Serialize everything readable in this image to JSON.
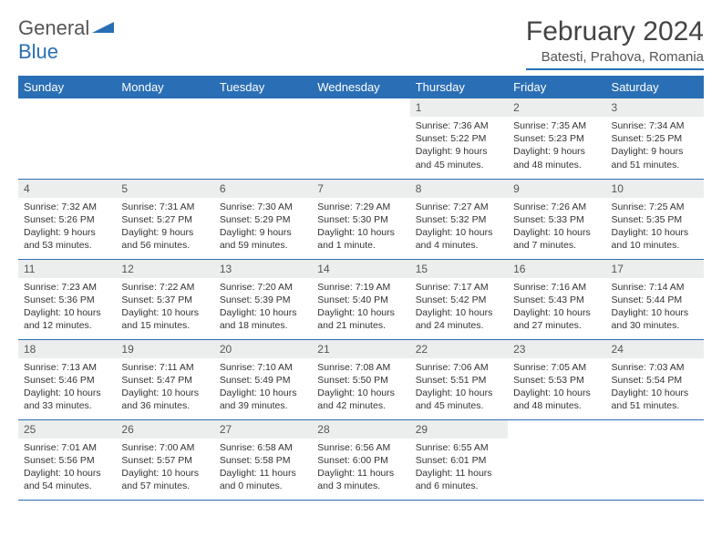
{
  "logo": {
    "text1": "General",
    "text2": "Blue",
    "shape_color": "#2a6fb5"
  },
  "title": "February 2024",
  "location": "Batesti, Prahova, Romania",
  "colors": {
    "accent": "#2a6fb5",
    "header_bg": "#2a6fb5",
    "daynum_bg": "#eceded",
    "text": "#333333",
    "bg": "#ffffff"
  },
  "typography": {
    "title_size": 30,
    "th_size": 13,
    "daynum_size": 12,
    "content_size": 10.5
  },
  "day_headers": [
    "Sunday",
    "Monday",
    "Tuesday",
    "Wednesday",
    "Thursday",
    "Friday",
    "Saturday"
  ],
  "weeks": [
    [
      null,
      null,
      null,
      null,
      {
        "n": "1",
        "sunrise": "7:36 AM",
        "sunset": "5:22 PM",
        "daylight": "9 hours and 45 minutes."
      },
      {
        "n": "2",
        "sunrise": "7:35 AM",
        "sunset": "5:23 PM",
        "daylight": "9 hours and 48 minutes."
      },
      {
        "n": "3",
        "sunrise": "7:34 AM",
        "sunset": "5:25 PM",
        "daylight": "9 hours and 51 minutes."
      }
    ],
    [
      {
        "n": "4",
        "sunrise": "7:32 AM",
        "sunset": "5:26 PM",
        "daylight": "9 hours and 53 minutes."
      },
      {
        "n": "5",
        "sunrise": "7:31 AM",
        "sunset": "5:27 PM",
        "daylight": "9 hours and 56 minutes."
      },
      {
        "n": "6",
        "sunrise": "7:30 AM",
        "sunset": "5:29 PM",
        "daylight": "9 hours and 59 minutes."
      },
      {
        "n": "7",
        "sunrise": "7:29 AM",
        "sunset": "5:30 PM",
        "daylight": "10 hours and 1 minute."
      },
      {
        "n": "8",
        "sunrise": "7:27 AM",
        "sunset": "5:32 PM",
        "daylight": "10 hours and 4 minutes."
      },
      {
        "n": "9",
        "sunrise": "7:26 AM",
        "sunset": "5:33 PM",
        "daylight": "10 hours and 7 minutes."
      },
      {
        "n": "10",
        "sunrise": "7:25 AM",
        "sunset": "5:35 PM",
        "daylight": "10 hours and 10 minutes."
      }
    ],
    [
      {
        "n": "11",
        "sunrise": "7:23 AM",
        "sunset": "5:36 PM",
        "daylight": "10 hours and 12 minutes."
      },
      {
        "n": "12",
        "sunrise": "7:22 AM",
        "sunset": "5:37 PM",
        "daylight": "10 hours and 15 minutes."
      },
      {
        "n": "13",
        "sunrise": "7:20 AM",
        "sunset": "5:39 PM",
        "daylight": "10 hours and 18 minutes."
      },
      {
        "n": "14",
        "sunrise": "7:19 AM",
        "sunset": "5:40 PM",
        "daylight": "10 hours and 21 minutes."
      },
      {
        "n": "15",
        "sunrise": "7:17 AM",
        "sunset": "5:42 PM",
        "daylight": "10 hours and 24 minutes."
      },
      {
        "n": "16",
        "sunrise": "7:16 AM",
        "sunset": "5:43 PM",
        "daylight": "10 hours and 27 minutes."
      },
      {
        "n": "17",
        "sunrise": "7:14 AM",
        "sunset": "5:44 PM",
        "daylight": "10 hours and 30 minutes."
      }
    ],
    [
      {
        "n": "18",
        "sunrise": "7:13 AM",
        "sunset": "5:46 PM",
        "daylight": "10 hours and 33 minutes."
      },
      {
        "n": "19",
        "sunrise": "7:11 AM",
        "sunset": "5:47 PM",
        "daylight": "10 hours and 36 minutes."
      },
      {
        "n": "20",
        "sunrise": "7:10 AM",
        "sunset": "5:49 PM",
        "daylight": "10 hours and 39 minutes."
      },
      {
        "n": "21",
        "sunrise": "7:08 AM",
        "sunset": "5:50 PM",
        "daylight": "10 hours and 42 minutes."
      },
      {
        "n": "22",
        "sunrise": "7:06 AM",
        "sunset": "5:51 PM",
        "daylight": "10 hours and 45 minutes."
      },
      {
        "n": "23",
        "sunrise": "7:05 AM",
        "sunset": "5:53 PM",
        "daylight": "10 hours and 48 minutes."
      },
      {
        "n": "24",
        "sunrise": "7:03 AM",
        "sunset": "5:54 PM",
        "daylight": "10 hours and 51 minutes."
      }
    ],
    [
      {
        "n": "25",
        "sunrise": "7:01 AM",
        "sunset": "5:56 PM",
        "daylight": "10 hours and 54 minutes."
      },
      {
        "n": "26",
        "sunrise": "7:00 AM",
        "sunset": "5:57 PM",
        "daylight": "10 hours and 57 minutes."
      },
      {
        "n": "27",
        "sunrise": "6:58 AM",
        "sunset": "5:58 PM",
        "daylight": "11 hours and 0 minutes."
      },
      {
        "n": "28",
        "sunrise": "6:56 AM",
        "sunset": "6:00 PM",
        "daylight": "11 hours and 3 minutes."
      },
      {
        "n": "29",
        "sunrise": "6:55 AM",
        "sunset": "6:01 PM",
        "daylight": "11 hours and 6 minutes."
      },
      null,
      null
    ]
  ],
  "labels": {
    "sunrise": "Sunrise:",
    "sunset": "Sunset:",
    "daylight": "Daylight:"
  }
}
